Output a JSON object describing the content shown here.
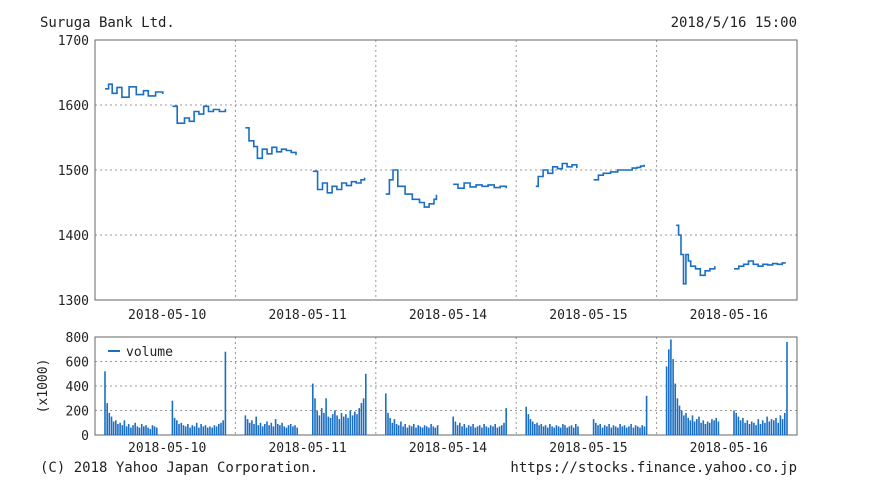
{
  "header": {
    "title": "Suruga Bank Ltd.",
    "datetime": "2018/5/16 15:00"
  },
  "footer": {
    "copyright": "(C) 2018 Yahoo Japan Corporation.",
    "url": "https://stocks.finance.yahoo.co.jp"
  },
  "colors": {
    "line": "#1a6fc4",
    "grid": "#999999",
    "frame": "#666666"
  },
  "chart_data": [
    {
      "type": "line",
      "title": "",
      "xlabel": "",
      "ylabel": "",
      "ylim": [
        1300,
        1700
      ],
      "yticks": [
        1300,
        1400,
        1500,
        1600,
        1700
      ],
      "grid": true,
      "categories": [
        "2018-05-10",
        "2018-05-11",
        "2018-05-14",
        "2018-05-15",
        "2018-05-16"
      ],
      "series": [
        {
          "days": [
            [
              [
                0,
                1625
              ],
              [
                0.03,
                1632
              ],
              [
                0.06,
                1618
              ],
              [
                0.1,
                1627
              ],
              [
                0.14,
                1612
              ],
              [
                0.2,
                1628
              ],
              [
                0.26,
                1616
              ],
              [
                0.32,
                1622
              ],
              [
                0.36,
                1614
              ],
              [
                0.42,
                1620
              ],
              [
                0.48,
                1617
              ]
            ],
            [
              [
                0.56,
                1598
              ],
              [
                0.6,
                1572
              ],
              [
                0.66,
                1580
              ],
              [
                0.7,
                1575
              ],
              [
                0.74,
                1590
              ],
              [
                0.78,
                1586
              ],
              [
                0.82,
                1598
              ],
              [
                0.86,
                1590
              ],
              [
                0.9,
                1593
              ],
              [
                0.95,
                1590
              ],
              [
                1.0,
                1594
              ]
            ],
            [
              [
                0,
                1565
              ],
              [
                0.03,
                1545
              ],
              [
                0.07,
                1536
              ],
              [
                0.1,
                1518
              ],
              [
                0.14,
                1532
              ],
              [
                0.18,
                1525
              ],
              [
                0.22,
                1535
              ],
              [
                0.26,
                1528
              ],
              [
                0.3,
                1532
              ],
              [
                0.34,
                1530
              ],
              [
                0.38,
                1527
              ],
              [
                0.42,
                1523
              ]
            ],
            [
              [
                0.56,
                1498
              ],
              [
                0.6,
                1470
              ],
              [
                0.64,
                1480
              ],
              [
                0.68,
                1465
              ],
              [
                0.72,
                1475
              ],
              [
                0.76,
                1470
              ],
              [
                0.8,
                1480
              ],
              [
                0.84,
                1476
              ],
              [
                0.88,
                1482
              ],
              [
                0.92,
                1480
              ],
              [
                0.96,
                1485
              ],
              [
                0.99,
                1488
              ]
            ],
            [
              [
                0,
                1463
              ],
              [
                0.03,
                1485
              ],
              [
                0.06,
                1500
              ],
              [
                0.1,
                1475
              ],
              [
                0.16,
                1463
              ],
              [
                0.22,
                1455
              ],
              [
                0.28,
                1450
              ],
              [
                0.32,
                1443
              ],
              [
                0.36,
                1448
              ],
              [
                0.4,
                1455
              ],
              [
                0.42,
                1462
              ]
            ],
            [
              [
                0.56,
                1478
              ],
              [
                0.6,
                1472
              ],
              [
                0.65,
                1480
              ],
              [
                0.7,
                1474
              ],
              [
                0.75,
                1477
              ],
              [
                0.8,
                1475
              ],
              [
                0.85,
                1477
              ],
              [
                0.9,
                1473
              ],
              [
                0.95,
                1475
              ],
              [
                1.0,
                1472
              ]
            ],
            [
              [
                0.08,
                1475
              ],
              [
                0.1,
                1490
              ],
              [
                0.14,
                1500
              ],
              [
                0.18,
                1495
              ],
              [
                0.22,
                1505
              ],
              [
                0.26,
                1502
              ],
              [
                0.3,
                1510
              ],
              [
                0.34,
                1505
              ],
              [
                0.38,
                1508
              ],
              [
                0.42,
                1503
              ]
            ],
            [
              [
                0.56,
                1485
              ],
              [
                0.6,
                1492
              ],
              [
                0.64,
                1495
              ],
              [
                0.7,
                1497
              ],
              [
                0.76,
                1500
              ],
              [
                0.82,
                1500
              ],
              [
                0.88,
                1503
              ],
              [
                0.92,
                1504
              ],
              [
                0.95,
                1506
              ],
              [
                0.98,
                1508
              ]
            ],
            [
              [
                0.08,
                1415
              ],
              [
                0.1,
                1400
              ],
              [
                0.12,
                1370
              ],
              [
                0.14,
                1325
              ],
              [
                0.16,
                1370
              ],
              [
                0.18,
                1360
              ],
              [
                0.2,
                1352
              ],
              [
                0.24,
                1348
              ],
              [
                0.28,
                1338
              ],
              [
                0.32,
                1345
              ],
              [
                0.36,
                1348
              ],
              [
                0.4,
                1352
              ]
            ],
            [
              [
                0.56,
                1348
              ],
              [
                0.6,
                1352
              ],
              [
                0.64,
                1355
              ],
              [
                0.68,
                1360
              ],
              [
                0.72,
                1355
              ],
              [
                0.76,
                1352
              ],
              [
                0.8,
                1355
              ],
              [
                0.84,
                1354
              ],
              [
                0.88,
                1356
              ],
              [
                0.92,
                1355
              ],
              [
                0.96,
                1357
              ],
              [
                0.99,
                1357
              ]
            ]
          ]
        }
      ]
    },
    {
      "type": "bar",
      "title": "",
      "ylabel": "(x1000)",
      "ylim": [
        0,
        800
      ],
      "yticks": [
        0,
        200,
        400,
        600,
        800
      ],
      "grid": true,
      "categories": [
        "2018-05-10",
        "2018-05-11",
        "2018-05-14",
        "2018-05-15",
        "2018-05-16"
      ],
      "legend": {
        "position": "top-left",
        "entries": [
          "volume"
        ]
      },
      "series": [
        {
          "name": "volume",
          "days": [
            {
              "am": [
                520,
                260,
                180,
                150,
                110,
                120,
                90,
                100,
                80,
                120,
                70,
                90,
                60,
                80,
                100,
                70,
                60,
                90,
                70,
                80,
                60,
                50,
                80,
                70,
                60
              ],
              "pm": [
                280,
                140,
                120,
                90,
                100,
                80,
                70,
                90,
                60,
                80,
                70,
                100,
                60,
                90,
                70,
                80,
                60,
                70,
                60,
                80,
                70,
                90,
                100,
                120,
                680
              ]
            },
            {
              "am": [
                160,
                130,
                100,
                120,
                90,
                150,
                80,
                100,
                70,
                90,
                110,
                80,
                100,
                70,
                130,
                90,
                80,
                100,
                70,
                60,
                80,
                90,
                70,
                80,
                60
              ],
              "pm": [
                420,
                300,
                200,
                160,
                220,
                180,
                300,
                150,
                140,
                170,
                200,
                160,
                130,
                180,
                150,
                170,
                140,
                200,
                160,
                190,
                170,
                220,
                260,
                300,
                500
              ]
            },
            {
              "am": [
                340,
                180,
                140,
                100,
                130,
                90,
                80,
                110,
                70,
                90,
                60,
                80,
                70,
                90,
                60,
                80,
                70,
                60,
                80,
                70,
                60,
                90,
                70,
                60,
                80
              ],
              "pm": [
                150,
                110,
                80,
                100,
                70,
                90,
                60,
                80,
                70,
                90,
                60,
                70,
                80,
                60,
                90,
                70,
                60,
                80,
                70,
                90,
                60,
                70,
                80,
                100,
                220
              ]
            },
            {
              "am": [
                230,
                170,
                130,
                110,
                90,
                100,
                80,
                90,
                70,
                80,
                60,
                90,
                70,
                60,
                80,
                70,
                60,
                90,
                80,
                60,
                70,
                80,
                60,
                90,
                70
              ],
              "pm": [
                130,
                100,
                80,
                90,
                60,
                80,
                70,
                90,
                60,
                80,
                70,
                60,
                90,
                70,
                80,
                60,
                70,
                90,
                60,
                80,
                70,
                60,
                80,
                70,
                320
              ]
            },
            {
              "am": [
                560,
                700,
                780,
                620,
                420,
                300,
                240,
                200,
                160,
                180,
                140,
                120,
                160,
                110,
                130,
                150,
                100,
                120,
                90,
                110,
                100,
                130,
                120,
                140,
                110
              ],
              "pm": [
                200,
                180,
                150,
                120,
                140,
                100,
                120,
                90,
                110,
                100,
                80,
                130,
                90,
                120,
                100,
                150,
                110,
                130,
                120,
                140,
                100,
                160,
                130,
                180,
                760
              ]
            }
          ]
        }
      ]
    }
  ]
}
